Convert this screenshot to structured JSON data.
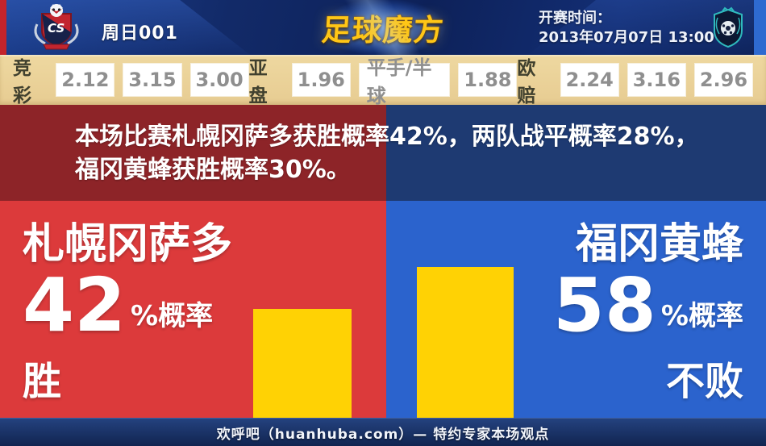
{
  "header": {
    "match_code": "周日001",
    "brand": "足球魔方",
    "kickoff_label": "开赛时间：",
    "kickoff_value": "2013年07月07日 13:00",
    "home_crest": "consadole-sapporo-crest",
    "away_crest": "avispa-fukuoka-crest"
  },
  "odds": {
    "jingcai_label": "竞彩",
    "jingcai": [
      "2.12",
      "3.15",
      "3.00"
    ],
    "yapan_label": "亚盘",
    "yapan": [
      "1.96",
      "平手/半球",
      "1.88"
    ],
    "oupei_label": "欧赔",
    "oupei": [
      "2.24",
      "3.16",
      "2.96"
    ]
  },
  "summary": {
    "line1": "本场比赛札幌冈萨多获胜概率42%，两队战平概率28%，",
    "line2": "福冈黄蜂获胜概率30%。"
  },
  "home": {
    "name": "札幌冈萨多",
    "percent": "42",
    "suffix": "%概率",
    "outcome": "胜"
  },
  "away": {
    "name": "福冈黄蜂",
    "percent": "58",
    "suffix": "%概率",
    "outcome": "不败"
  },
  "footer": {
    "caption": "欢呼吧（huanhuba.com）— 特约专家本场观点"
  },
  "colors": {
    "home_red": "#dc3a3b",
    "away_blue": "#2b63cd",
    "dark_red": "#8d2428",
    "dark_blue": "#1e3a72",
    "bar_yellow": "#ffd204",
    "odds_tan": "#e7cc92",
    "brand_gold": "#ffc616"
  },
  "chart_data": {
    "type": "bar",
    "categories": [
      "札幌冈萨多 胜",
      "福冈黄蜂 不败"
    ],
    "values": [
      42,
      58
    ],
    "unit": "%",
    "bar_color": "#ffd204",
    "ylim": [
      0,
      100
    ],
    "grid": false,
    "legend": false
  }
}
